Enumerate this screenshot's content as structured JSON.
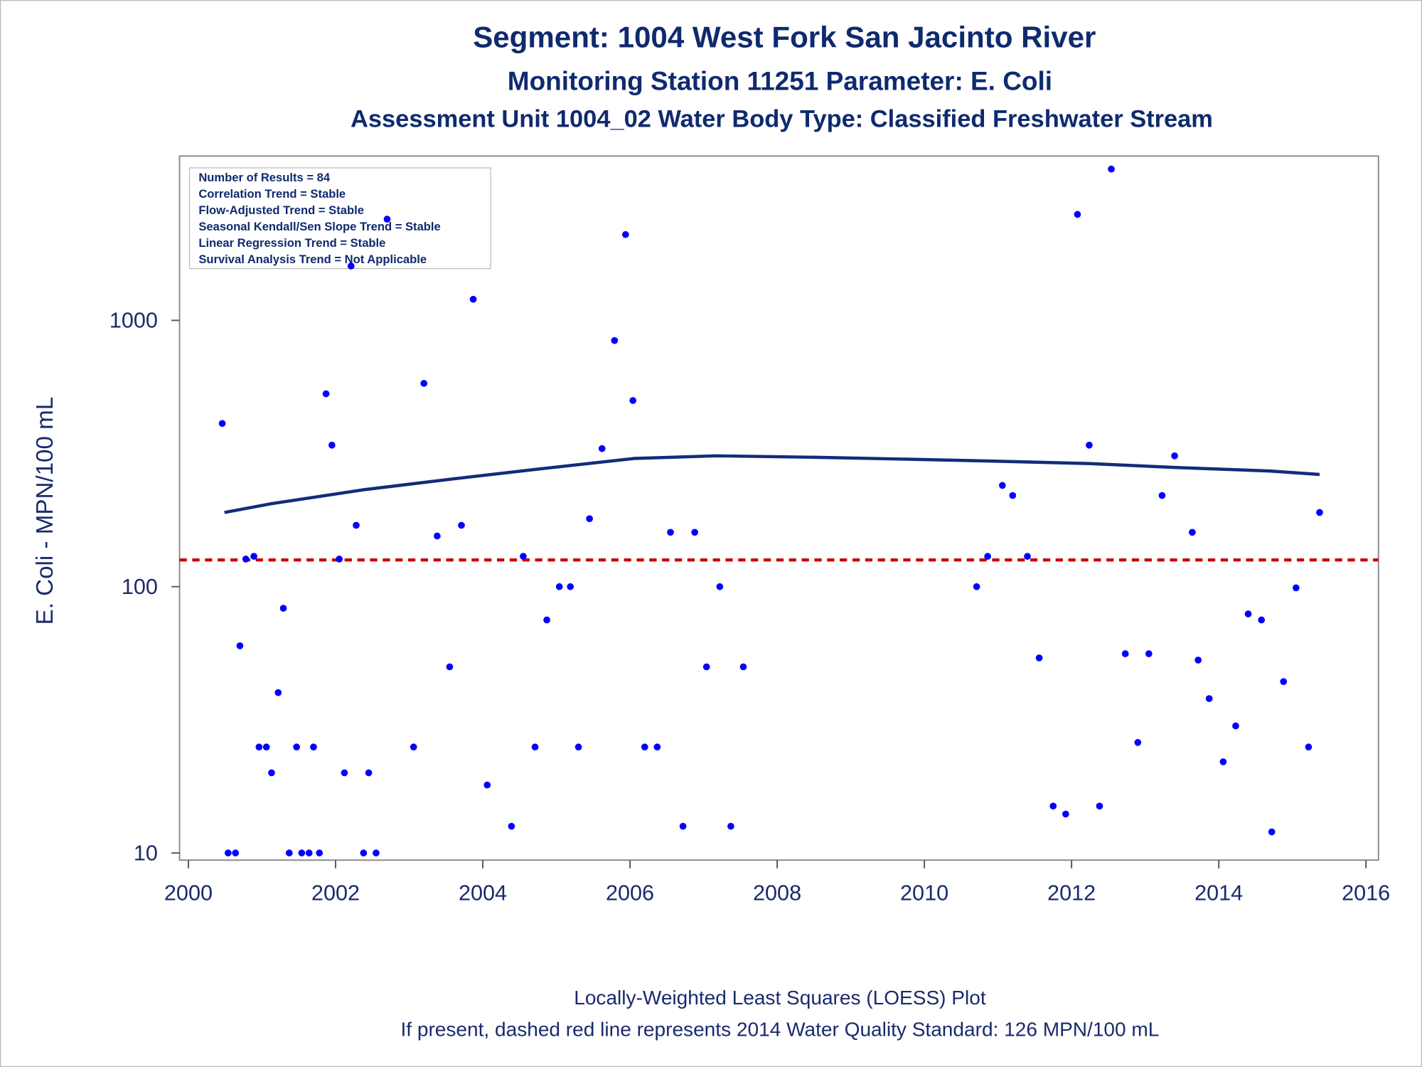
{
  "chart_data": {
    "type": "scatter",
    "title": "Segment: 1004  West Fork San Jacinto River",
    "subtitles": [
      "Monitoring Station 11251 Parameter: E. Coli",
      "Assessment Unit 1004_02   Water Body Type: Classified Freshwater Stream"
    ],
    "info_box": [
      "Number of Results = 84",
      "Correlation Trend = Stable",
      "Flow-Adjusted Trend = Stable",
      "Seasonal Kendall/Sen Slope Trend = Stable",
      "Linear Regression Trend = Stable",
      "Survival Analysis Trend = Not Applicable"
    ],
    "y_label": "E. Coli - MPN/100 mL",
    "footnotes": [
      "Locally-Weighted Least Squares (LOESS) Plot",
      "If present, dashed red line represents 2014 Water Quality Standard: 126 MPN/100 mL"
    ],
    "x": [
      2000.46,
      2000.54,
      2000.64,
      2000.7,
      2000.78,
      2000.89,
      2000.96,
      2001.06,
      2001.13,
      2001.22,
      2001.29,
      2001.37,
      2001.47,
      2001.54,
      2001.64,
      2001.7,
      2001.78,
      2001.87,
      2001.95,
      2002.05,
      2002.12,
      2002.21,
      2002.28,
      2002.38,
      2002.45,
      2002.55,
      2002.7,
      2003.06,
      2003.2,
      2003.38,
      2003.55,
      2003.71,
      2003.87,
      2004.06,
      2004.39,
      2004.55,
      2004.71,
      2004.87,
      2005.04,
      2005.19,
      2005.3,
      2005.45,
      2005.62,
      2005.79,
      2005.94,
      2006.04,
      2006.2,
      2006.37,
      2006.55,
      2006.72,
      2006.88,
      2007.04,
      2007.22,
      2007.37,
      2007.54,
      2010.71,
      2010.86,
      2011.06,
      2011.2,
      2011.4,
      2011.56,
      2011.75,
      2011.92,
      2012.08,
      2012.24,
      2012.38,
      2012.54,
      2012.73,
      2012.9,
      2013.05,
      2013.23,
      2013.4,
      2013.64,
      2013.72,
      2013.87,
      2014.06,
      2014.23,
      2014.4,
      2014.58,
      2014.72,
      2014.88,
      2015.05,
      2015.22,
      2015.37
    ],
    "values": [
      410,
      10,
      10,
      60,
      127,
      130,
      25,
      25,
      20,
      40,
      83,
      10,
      25,
      10,
      10,
      25,
      10,
      530,
      340,
      127,
      20,
      1600,
      170,
      10,
      20,
      10,
      2400,
      25,
      580,
      155,
      50,
      170,
      1200,
      18,
      12.6,
      130,
      25,
      75,
      100,
      100,
      25,
      180,
      330,
      840,
      2100,
      500,
      25,
      25,
      160,
      12.6,
      160,
      50,
      100,
      12.6,
      50,
      100,
      130,
      240,
      220,
      130,
      54,
      15,
      14,
      2500,
      340,
      15,
      3700,
      56,
      26,
      56,
      220,
      310,
      160,
      53,
      38,
      22,
      30,
      79,
      75,
      12,
      44,
      99,
      25,
      190
    ],
    "color": "#0000ff",
    "loess": {
      "x": [
        2000.49,
        2001.13,
        2002.37,
        2003.6,
        2004.83,
        2006.06,
        2007.17,
        2008.53,
        2009.76,
        2010.99,
        2012.23,
        2013.46,
        2014.69,
        2015.37
      ],
      "values": [
        190,
        205,
        231,
        254,
        278,
        303,
        310,
        306,
        301,
        296,
        290,
        280,
        272,
        264
      ],
      "color": "#112c7a"
    },
    "reference_line": {
      "value": 126,
      "color": "#cc0000"
    },
    "xlim": [
      1999.88,
      2016.17
    ],
    "ylim": [
      9.4,
      4140
    ],
    "xticks": [
      2000,
      2002,
      2004,
      2006,
      2008,
      2010,
      2012,
      2014,
      2016
    ],
    "yticks": [
      10,
      100,
      1000
    ],
    "y_scale": "log",
    "grid": false
  }
}
